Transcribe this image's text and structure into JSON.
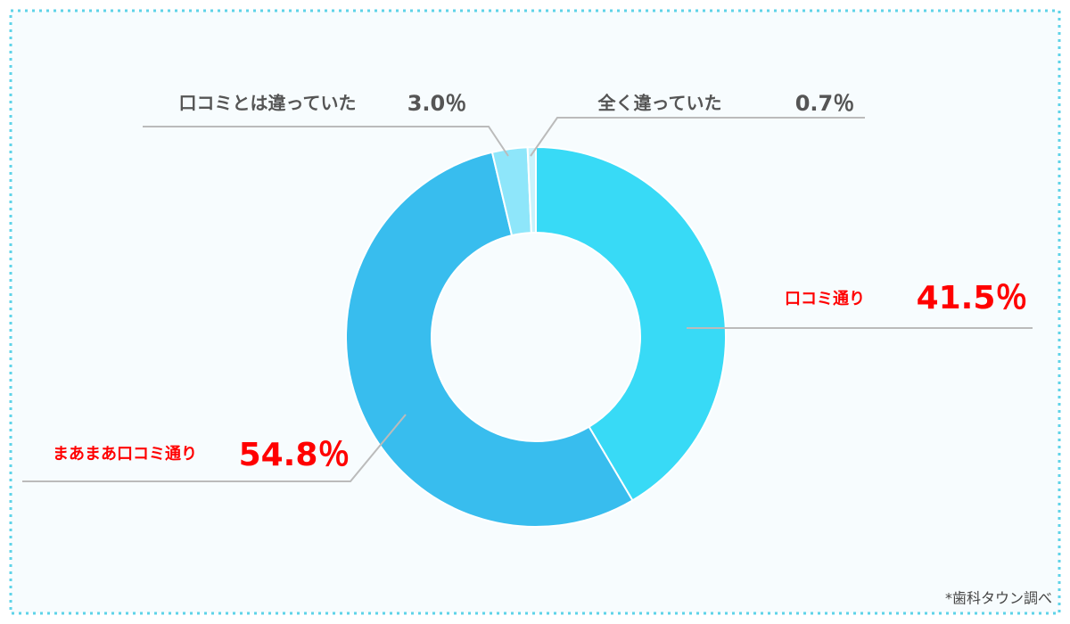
{
  "chart_data": {
    "type": "pie",
    "categories": [
      "口コミ通り",
      "まあまあ口コミ通り",
      "口コミとは違っていた",
      "全く違っていた"
    ],
    "values": [
      41.5,
      54.8,
      3.0,
      0.7
    ],
    "value_labels": [
      "41.5％",
      "54.8％",
      "3.0％",
      "0.7％"
    ],
    "colors": [
      "#38daf6",
      "#38bdee",
      "#8ee6fa",
      "#c9f3fc"
    ],
    "source": "*歯科タウン調べ"
  }
}
